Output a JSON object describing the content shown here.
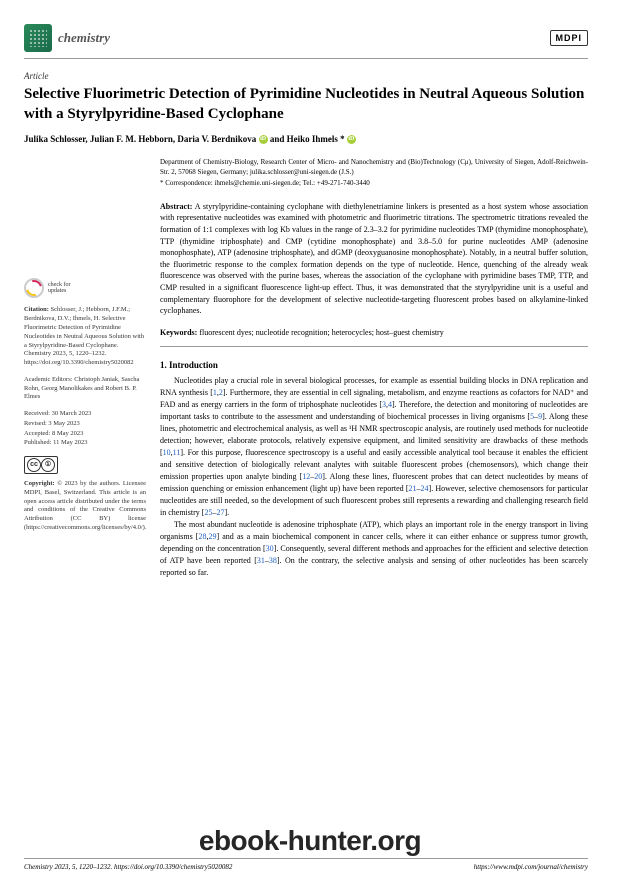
{
  "header": {
    "journal": "chemistry",
    "publisher": "MDPI"
  },
  "article": {
    "type": "Article",
    "title": "Selective Fluorimetric Detection of Pyrimidine Nucleotides in Neutral Aqueous Solution with a Styrylpyridine-Based Cyclophane",
    "authors": "Julika Schlosser, Julian F. M. Hebborn, Daria V. Berdnikova",
    "author_and": " and ",
    "author_last": "Heiko Ihmels *",
    "affiliation": "Department of Chemistry-Biology, Research Center of Micro- and Nanochemistry and (Bio)Technology (Cμ), University of Siegen, Adolf-Reichwein-Str. 2, 57068 Siegen, Germany; julika.schlosser@uni-siegen.de (J.S.)",
    "correspondence": "* Correspondence: ihmels@chemie.uni-siegen.de; Tel.: +49-271-740-3440"
  },
  "abstract": {
    "label": "Abstract:",
    "text": " A styrylpyridine-containing cyclophane with diethylenetriamine linkers is presented as a host system whose association with representative nucleotides was examined with photometric and fluorimetric titrations. The spectrometric titrations revealed the formation of 1:1 complexes with log Kb values in the range of 2.3–3.2 for pyrimidine nucleotides TMP (thymidine monophosphate), TTP (thymidine triphosphate) and CMP (cytidine monophosphate) and 3.8–5.0 for purine nucleotides AMP (adenosine monophosphate), ATP (adenosine triphosphate), and dGMP (deoxyguanosine monophosphate). Notably, in a neutral buffer solution, the fluorimetric response to the complex formation depends on the type of nucleotide. Hence, quenching of the already weak fluorescence was observed with the purine bases, whereas the association of the cyclophane with pyrimidine bases TMP, TTP, and CMP resulted in a significant fluorescence light-up effect. Thus, it was demonstrated that the styrylpyridine unit is a useful and complementary fluorophore for the development of selective nucleotide-targeting fluorescent probes based on alkylamine-linked cyclophanes."
  },
  "keywords": {
    "label": "Keywords:",
    "text": " fluorescent dyes; nucleotide recognition; heterocycles; host–guest chemistry"
  },
  "section1": {
    "heading": "1. Introduction",
    "para1a": "Nucleotides play a crucial role in several biological processes, for example as essential building blocks in DNA replication and RNA synthesis [",
    "r1": "1",
    "c1": ",",
    "r2": "2",
    "para1b": "]. Furthermore, they are essential in cell signaling, metabolism, and enzyme reactions as cofactors for NAD⁺ and FAD and as energy carriers in the form of triphosphate nucleotides [",
    "r3": "3",
    "c2": ",",
    "r4": "4",
    "para1c": "]. Therefore, the detection and monitoring of nucleotides are important tasks to contribute to the assessment and understanding of biochemical processes in living organisms [",
    "r5": "5",
    "d1": "–",
    "r9": "9",
    "para1d": "]. Along these lines, photometric and electrochemical analysis, as well as ¹H NMR spectroscopic analysis, are routinely used methods for nucleotide detection; however, elaborate protocols, relatively expensive equipment, and limited sensitivity are drawbacks of these methods [",
    "r10": "10",
    "c3": ",",
    "r11": "11",
    "para1e": "]. For this purpose, fluorescence spectroscopy is a useful and easily accessible analytical tool because it enables the efficient and sensitive detection of biologically relevant analytes with suitable fluorescent probes (chemosensors), which change their emission properties upon analyte binding [",
    "r12": "12",
    "d2": "–",
    "r20": "20",
    "para1f": "]. Along these lines, fluorescent probes that can detect nucleotides by means of emission quenching or emission enhancement (light up) have been reported [",
    "r21": "21",
    "d3": "–",
    "r24": "24",
    "para1g": "]. However, selective chemosensors for particular nucleotides are still needed, so the development of such fluorescent probes still represents a rewarding and challenging research field in chemistry [",
    "r25": "25",
    "d4": "–",
    "r27": "27",
    "para1h": "].",
    "para2a": "The most abundant nucleotide is adenosine triphosphate (ATP), which plays an important role in the energy transport in living organisms [",
    "r28": "28",
    "c4": ",",
    "r29": "29",
    "para2b": "] and as a main biochemical component in cancer cells, where it can either enhance or suppress tumor growth, depending on the concentration [",
    "r30": "30",
    "para2c": "]. Consequently, several different methods and approaches for the efficient and selective detection of ATP have been reported [",
    "r31": "31",
    "d5": "–",
    "r38": "38",
    "para2d": "]. On the contrary, the selective analysis and sensing of other nucleotides has been scarcely reported so far."
  },
  "sidebar": {
    "check_line1": "check for",
    "check_line2": "updates",
    "citation_label": "Citation:",
    "citation_text": " Schlosser, J.; Hebborn, J.F.M.; Berdnikova, D.V.; Ihmels, H. Selective Fluorimetric Detection of Pyrimidine Nucleotides in Neutral Aqueous Solution with a Styrylpyridine-Based Cyclophane. Chemistry 2023, 5, 1220–1232. https://doi.org/10.3390/chemistry5020082",
    "editors_label": "Academic Editors:",
    "editors_text": " Christoph Janiak, Sascha Rohn, Georg Manolikakes and Robert B. P. Elmes",
    "received": "Received: 30 March 2023",
    "revised": "Revised: 3 May 2023",
    "accepted": "Accepted: 8 May 2023",
    "published": "Published: 11 May 2023",
    "copyright_label": "Copyright:",
    "copyright_text": " © 2023 by the authors. Licensee MDPI, Basel, Switzerland. This article is an open access article distributed under the terms and conditions of the Creative Commons Attribution (CC BY) license (https://creativecommons.org/licenses/by/4.0/)."
  },
  "footer": {
    "left": "Chemistry 2023, 5, 1220–1232. https://doi.org/10.3390/chemistry5020082",
    "right": "https://www.mdpi.com/journal/chemistry"
  },
  "watermark": "ebook-hunter.org",
  "colors": {
    "link": "#2060c0",
    "logo_green": "#2a8a5a",
    "check_pink": "#d4295b",
    "check_yellow": "#f5c518",
    "orcid": "#a6ce39"
  }
}
